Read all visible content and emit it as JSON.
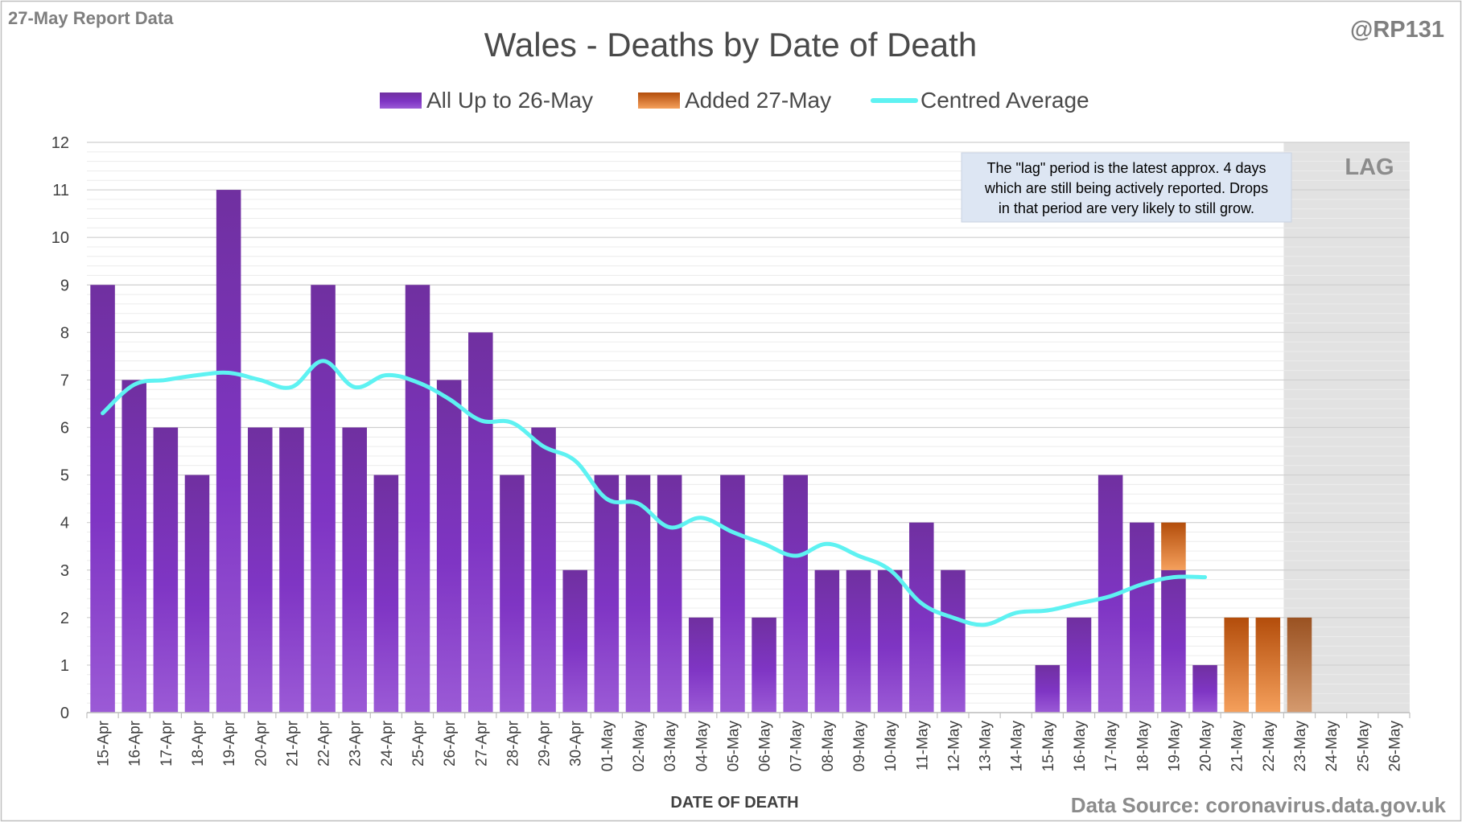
{
  "header": {
    "report_label": "27-May Report Data",
    "author": "@RP131"
  },
  "footer": {
    "source": "Data Source: coronavirus.data.gov.uk"
  },
  "colors": {
    "purple": "#7d36c2",
    "orange": "#f08a3c",
    "average": "#5ef2f2",
    "lag_shade": "#bbbbbb",
    "grid": "#d9d9d9",
    "annotation_bg": "#dde6f3"
  },
  "chart_data": {
    "type": "bar",
    "stacked": true,
    "title": "Wales - Deaths by Date of Death",
    "xlabel": "DATE OF DEATH",
    "ylabel": "",
    "ylim": [
      0,
      12
    ],
    "yticks": [
      0,
      1,
      2,
      3,
      4,
      5,
      6,
      7,
      8,
      9,
      10,
      11,
      12
    ],
    "grid": true,
    "legend_position": "top-center",
    "categories": [
      "15-Apr",
      "16-Apr",
      "17-Apr",
      "18-Apr",
      "19-Apr",
      "20-Apr",
      "21-Apr",
      "22-Apr",
      "23-Apr",
      "24-Apr",
      "25-Apr",
      "26-Apr",
      "27-Apr",
      "28-Apr",
      "29-Apr",
      "30-Apr",
      "01-May",
      "02-May",
      "03-May",
      "04-May",
      "05-May",
      "06-May",
      "07-May",
      "08-May",
      "09-May",
      "10-May",
      "11-May",
      "12-May",
      "13-May",
      "14-May",
      "15-May",
      "16-May",
      "17-May",
      "18-May",
      "19-May",
      "20-May",
      "21-May",
      "22-May",
      "23-May",
      "24-May",
      "25-May",
      "26-May"
    ],
    "series": [
      {
        "name": "All Up to 26-May",
        "kind": "bar",
        "values": [
          9,
          7,
          6,
          5,
          11,
          6,
          6,
          9,
          6,
          5,
          9,
          7,
          8,
          5,
          6,
          3,
          5,
          5,
          5,
          2,
          5,
          2,
          5,
          3,
          3,
          3,
          4,
          3,
          0,
          0,
          1,
          2,
          5,
          4,
          3,
          1,
          0,
          0,
          0,
          0,
          0,
          0
        ]
      },
      {
        "name": "Added 27-May",
        "kind": "bar",
        "values": [
          0,
          0,
          0,
          0,
          0,
          0,
          0,
          0,
          0,
          0,
          0,
          0,
          0,
          0,
          0,
          0,
          0,
          0,
          0,
          0,
          0,
          0,
          0,
          0,
          0,
          0,
          0,
          0,
          0,
          0,
          0,
          0,
          0,
          0,
          1,
          0,
          2,
          2,
          2,
          0,
          0,
          0
        ]
      },
      {
        "name": "Centred Average",
        "kind": "line",
        "values": [
          6.3,
          6.9,
          7.0,
          7.1,
          7.15,
          7.0,
          6.85,
          7.4,
          6.85,
          7.1,
          6.95,
          6.6,
          6.15,
          6.1,
          5.6,
          5.3,
          4.5,
          4.4,
          3.9,
          4.1,
          3.8,
          3.55,
          3.3,
          3.55,
          3.3,
          3.0,
          2.3,
          2.0,
          1.85,
          2.1,
          2.15,
          2.3,
          2.45,
          2.7,
          2.85,
          2.85,
          null,
          null,
          null,
          null,
          null,
          null
        ]
      }
    ],
    "lag_region": {
      "start": "23-May",
      "end": "26-May",
      "label": "LAG"
    },
    "annotation": {
      "lines": [
        "The \"lag\" period is the latest approx. 4 days",
        "which are still being actively reported.  Drops",
        "in that period are very likely to still grow."
      ]
    }
  }
}
